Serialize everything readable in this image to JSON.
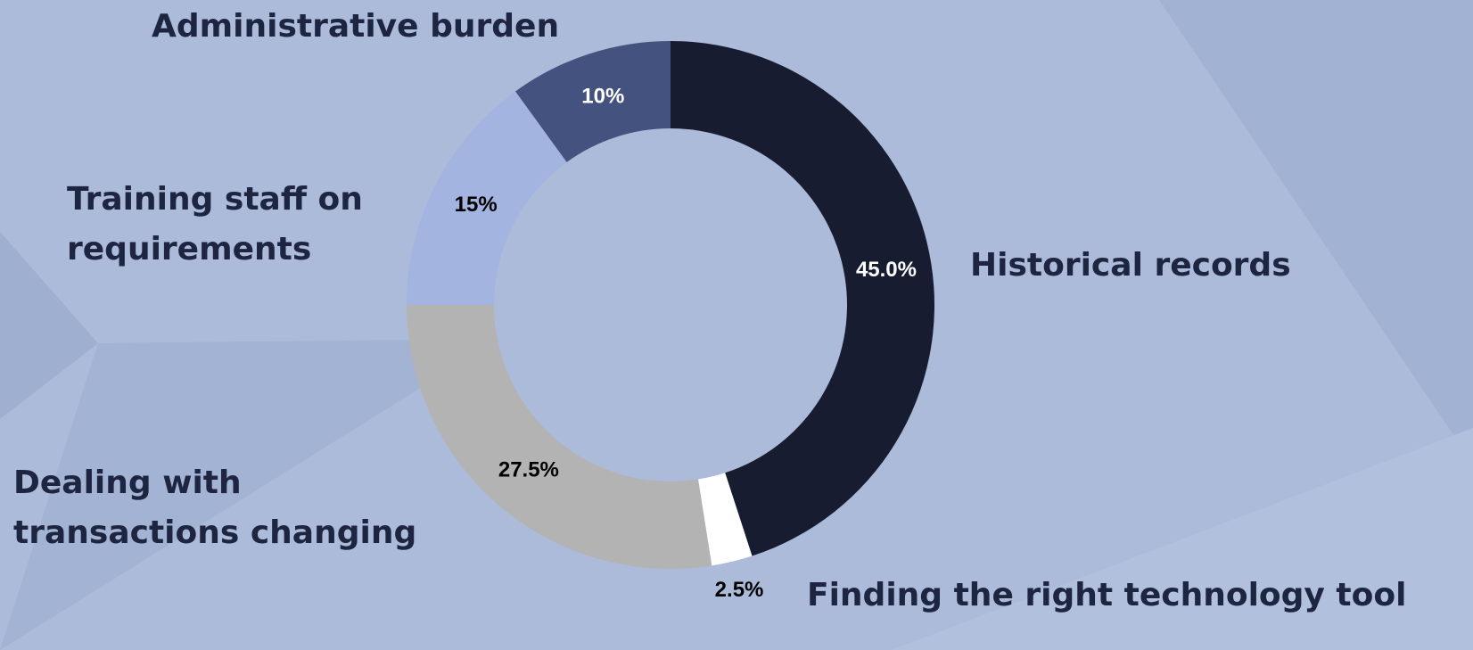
{
  "chart_data": {
    "type": "donut",
    "categories": [
      "Historical records",
      "Finding the right technology tool",
      "Dealing with transactions changing",
      "Training staff on requirements",
      "Administrative burden"
    ],
    "values": [
      45,
      2.5,
      27.5,
      15,
      10
    ],
    "value_labels": [
      "45.0%",
      "2.5%",
      "27.5%",
      "15%",
      "10%"
    ],
    "colors": [
      "#171c30",
      "#ffffff",
      "#b3b3b3",
      "#a3b4e0",
      "#44527f"
    ]
  }
}
